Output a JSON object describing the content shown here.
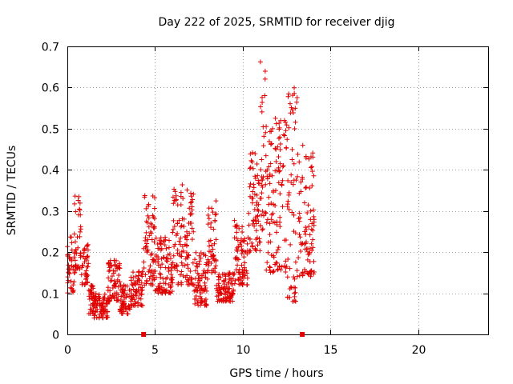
{
  "chart_data": {
    "type": "scatter",
    "title": "Day 222 of 2025, SRMTID for receiver djig",
    "xlabel": "GPS time / hours",
    "ylabel": "SRMTID / TECUs",
    "xlim": [
      0,
      24
    ],
    "ylim": [
      0,
      0.7
    ],
    "xticks": [
      0,
      5,
      10,
      15,
      20
    ],
    "xtick_labels": [
      "0",
      "5",
      "10",
      "15",
      "20"
    ],
    "yticks": [
      0,
      0.1,
      0.2,
      0.3,
      0.4,
      0.5,
      0.6,
      0.7
    ],
    "ytick_labels": [
      "0",
      "0.1",
      "0.2",
      "0.3",
      "0.4",
      "0.5",
      "0.6",
      "0.7"
    ],
    "grid": true,
    "marker": "+",
    "color": "#e00000",
    "segments": [
      {
        "t0": 0.0,
        "t1": 0.4,
        "lo": 0.1,
        "hi": 0.24
      },
      {
        "t0": 0.4,
        "t1": 0.8,
        "lo": 0.15,
        "hi": 0.34
      },
      {
        "t0": 0.8,
        "t1": 1.2,
        "lo": 0.12,
        "hi": 0.22
      },
      {
        "t0": 1.2,
        "t1": 1.5,
        "lo": 0.05,
        "hi": 0.12
      },
      {
        "t0": 1.5,
        "t1": 2.3,
        "lo": 0.04,
        "hi": 0.1
      },
      {
        "t0": 2.3,
        "t1": 3.0,
        "lo": 0.08,
        "hi": 0.18
      },
      {
        "t0": 3.0,
        "t1": 3.6,
        "lo": 0.05,
        "hi": 0.12
      },
      {
        "t0": 3.6,
        "t1": 4.3,
        "lo": 0.07,
        "hi": 0.16
      },
      {
        "t0": 4.3,
        "t1": 5.0,
        "lo": 0.12,
        "hi": 0.34
      },
      {
        "t0": 5.0,
        "t1": 6.0,
        "lo": 0.1,
        "hi": 0.24
      },
      {
        "t0": 6.0,
        "t1": 7.2,
        "lo": 0.12,
        "hi": 0.37
      },
      {
        "t0": 7.2,
        "t1": 8.0,
        "lo": 0.07,
        "hi": 0.2
      },
      {
        "t0": 8.0,
        "t1": 8.5,
        "lo": 0.15,
        "hi": 0.33
      },
      {
        "t0": 8.5,
        "t1": 9.5,
        "lo": 0.08,
        "hi": 0.15
      },
      {
        "t0": 9.5,
        "t1": 10.3,
        "lo": 0.12,
        "hi": 0.28
      },
      {
        "t0": 10.3,
        "t1": 11.0,
        "lo": 0.2,
        "hi": 0.45
      },
      {
        "t0": 11.0,
        "t1": 11.3,
        "lo": 0.25,
        "hi": 0.68
      },
      {
        "t0": 11.3,
        "t1": 12.5,
        "lo": 0.15,
        "hi": 0.54
      },
      {
        "t0": 12.5,
        "t1": 13.2,
        "lo": 0.08,
        "hi": 0.6
      },
      {
        "t0": 13.2,
        "t1": 14.1,
        "lo": 0.14,
        "hi": 0.46
      }
    ],
    "baseline_markers": [
      4.35,
      13.4
    ]
  }
}
